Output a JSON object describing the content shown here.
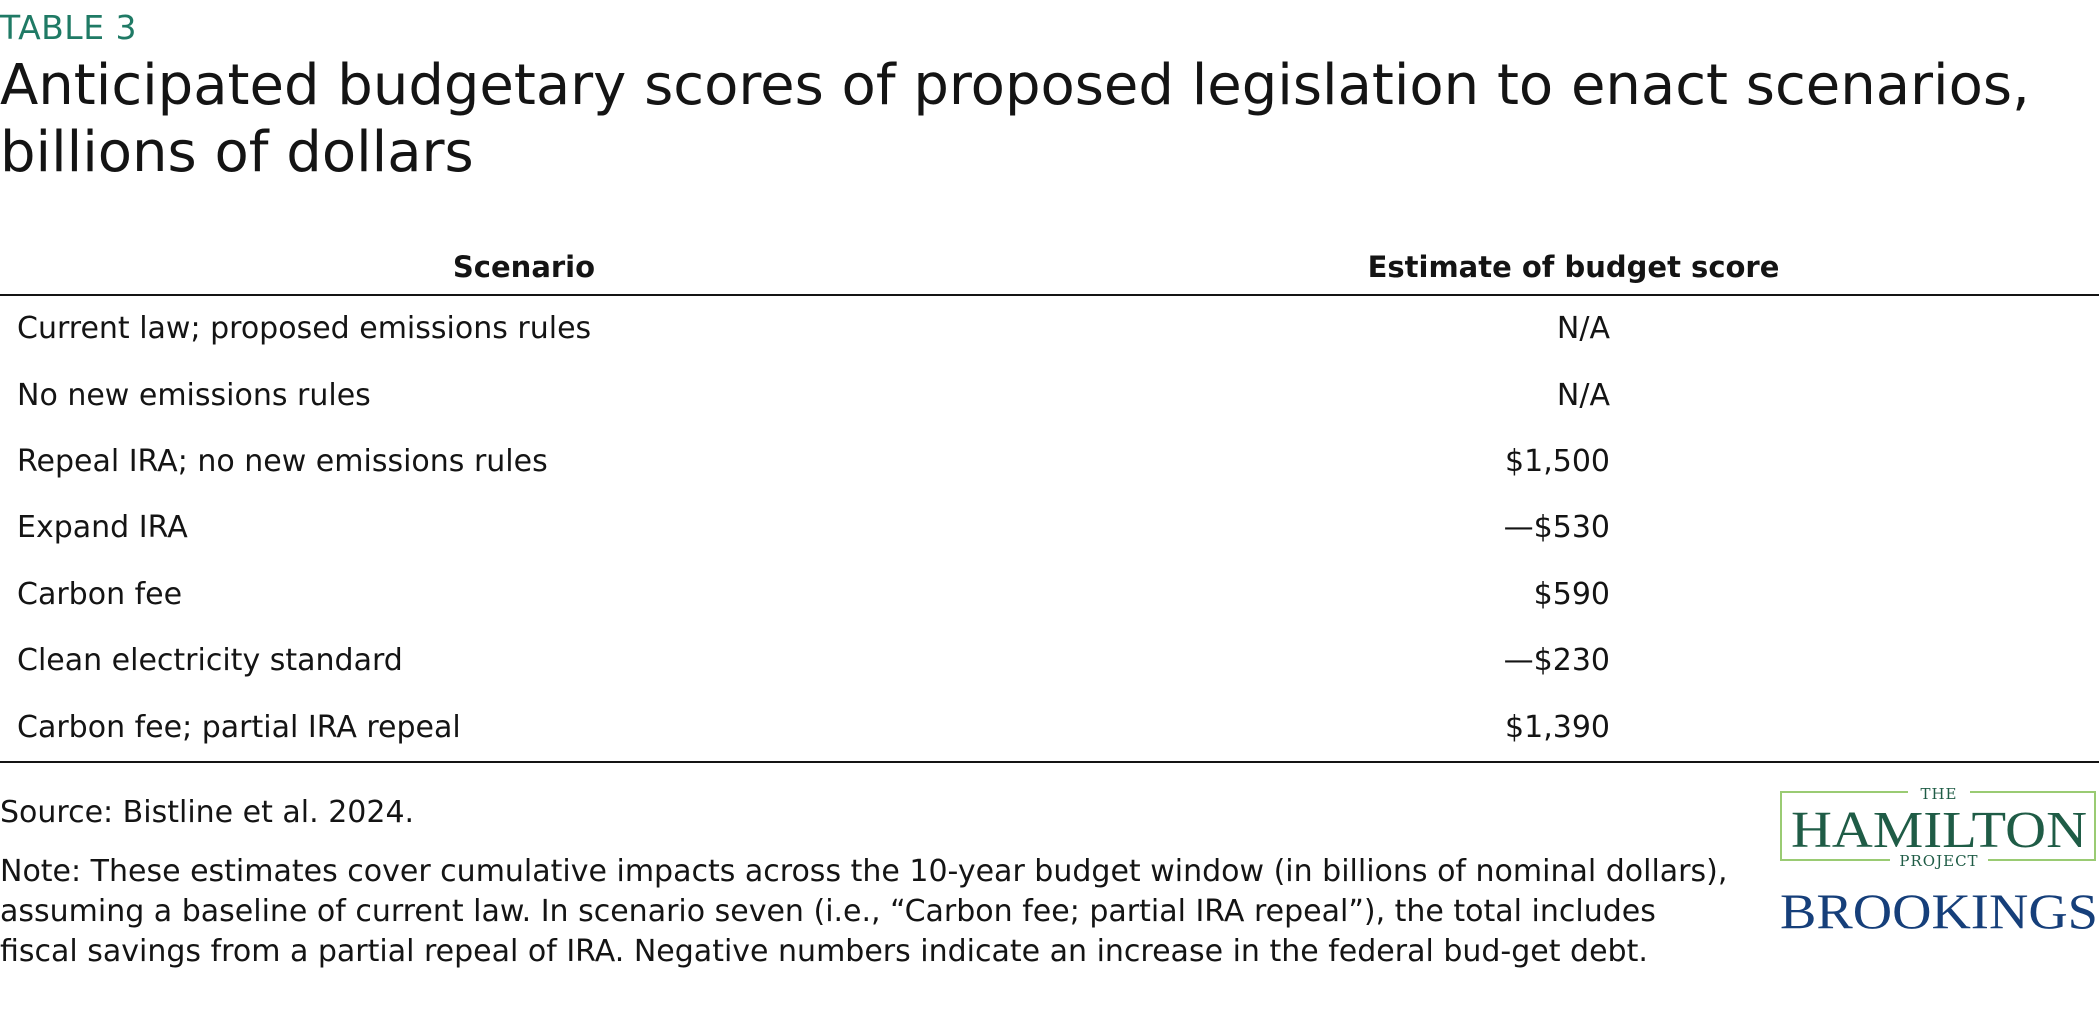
{
  "header": {
    "eyebrow": "TABLE 3",
    "title": "Anticipated budgetary scores of proposed legislation to enact scenarios, billions of dollars"
  },
  "table": {
    "columns": [
      "Scenario",
      "Estimate of budget score"
    ],
    "rows": [
      {
        "scenario": "Current law; proposed emissions rules",
        "estimate": "N/A"
      },
      {
        "scenario": "No new emissions rules",
        "estimate": "N/A"
      },
      {
        "scenario": "Repeal IRA; no new emissions rules",
        "estimate": "$1,500"
      },
      {
        "scenario": "Expand IRA",
        "estimate": "—$530"
      },
      {
        "scenario": "Carbon fee",
        "estimate": "$590"
      },
      {
        "scenario": "Clean electricity standard",
        "estimate": "—$230"
      },
      {
        "scenario": "Carbon fee; partial IRA repeal",
        "estimate": "$1,390"
      }
    ]
  },
  "footer": {
    "source": "Source: Bistline et al. 2024.",
    "note": "Note: These estimates cover cumulative impacts across the 10-year budget window (in billions of nominal dollars), assuming a baseline of current law. In scenario seven (i.e., “Carbon fee; partial IRA repeal”), the total includes fiscal savings from a partial repeal of IRA. Negative numbers indicate an increase in the federal bud-get debt."
  },
  "logos": {
    "hamilton_the": "THE",
    "hamilton_name": "HAMILTON",
    "hamilton_project": "PROJECT",
    "brookings": "BROOKINGS",
    "hamilton_color": "#1f5c46",
    "frame_color": "#9acb73",
    "brookings_color": "#163f7a"
  },
  "colors": {
    "eyebrow": "#1f7a65",
    "text": "#141414"
  }
}
